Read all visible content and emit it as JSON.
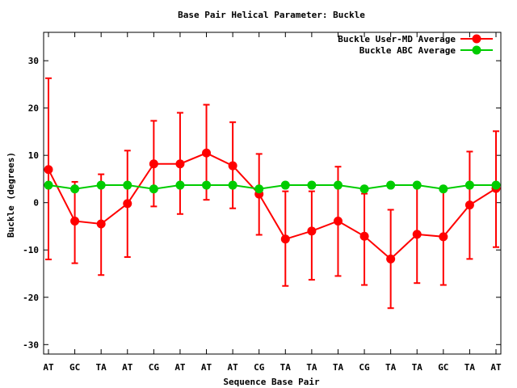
{
  "chart_data": {
    "type": "line",
    "title": "Base Pair Helical Parameter: Buckle",
    "xlabel": "Sequence Base Pair",
    "ylabel": "Buckle (degrees)",
    "categories": [
      "AT",
      "GC",
      "TA",
      "AT",
      "CG",
      "AT",
      "AT",
      "AT",
      "CG",
      "TA",
      "TA",
      "TA",
      "CG",
      "TA",
      "TA",
      "GC",
      "TA",
      "AT"
    ],
    "ylim": [
      -32,
      36
    ],
    "yticks": [
      -30,
      -20,
      -10,
      0,
      10,
      20,
      30
    ],
    "legend_position": "top-right",
    "grid": false,
    "series": [
      {
        "name": "Buckle User-MD Average",
        "color": "#ff0000",
        "values": [
          7.0,
          -3.9,
          -4.5,
          -0.2,
          8.2,
          8.2,
          10.5,
          7.8,
          1.8,
          -7.7,
          -6.0,
          -3.9,
          -7.1,
          -11.9,
          -6.7,
          -7.2,
          -0.5,
          3.0
        ],
        "err_low": [
          -12.0,
          -12.8,
          -15.3,
          -11.5,
          -0.8,
          -2.4,
          0.6,
          -1.2,
          -6.8,
          -17.6,
          -16.3,
          -15.5,
          -17.4,
          -22.3,
          -17.0,
          -17.4,
          -11.9,
          -9.4
        ],
        "err_high": [
          26.3,
          4.4,
          6.0,
          11.0,
          17.3,
          19.0,
          20.7,
          17.0,
          10.3,
          2.4,
          2.4,
          7.6,
          1.9,
          -1.5,
          3.6,
          2.9,
          10.8,
          15.1
        ]
      },
      {
        "name": "Buckle ABC Average",
        "color": "#00cc00",
        "values": [
          3.7,
          2.9,
          3.7,
          3.7,
          2.9,
          3.7,
          3.7,
          3.7,
          2.9,
          3.7,
          3.7,
          3.7,
          2.9,
          3.7,
          3.7,
          2.9,
          3.7,
          3.7
        ]
      }
    ]
  }
}
